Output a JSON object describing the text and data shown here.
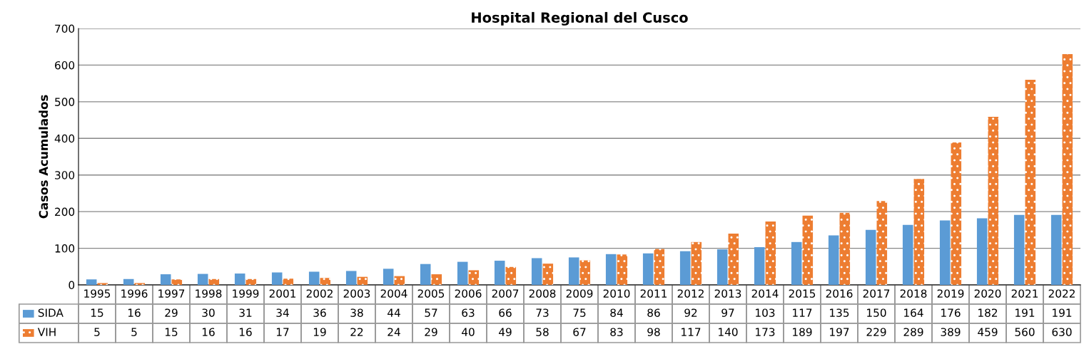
{
  "chart_data": {
    "type": "bar",
    "title": "Hospital Regional del Cusco",
    "ylabel": "Casos Acumulados",
    "categories": [
      "1995",
      "1996",
      "1997",
      "1998",
      "1999",
      "2001",
      "2002",
      "2003",
      "2004",
      "2005",
      "2006",
      "2007",
      "2008",
      "2009",
      "2010",
      "2011",
      "2012",
      "2013",
      "2014",
      "2015",
      "2016",
      "2017",
      "2018",
      "2019",
      "2020",
      "2021",
      "2022"
    ],
    "series": [
      {
        "name": "SIDA",
        "color": "#5b9bd5",
        "values": [
          15,
          16,
          29,
          30,
          31,
          34,
          36,
          38,
          44,
          57,
          63,
          66,
          73,
          75,
          84,
          86,
          92,
          97,
          103,
          117,
          135,
          150,
          164,
          176,
          182,
          191,
          191
        ]
      },
      {
        "name": "VIH",
        "color": "#ed7d31",
        "values": [
          5,
          5,
          15,
          16,
          16,
          17,
          19,
          22,
          24,
          29,
          40,
          49,
          58,
          67,
          83,
          98,
          117,
          140,
          173,
          189,
          197,
          229,
          289,
          389,
          459,
          560,
          630
        ]
      }
    ],
    "ylim": [
      0,
      700
    ],
    "yticks": [
      0,
      100,
      200,
      300,
      400,
      500,
      600,
      700
    ],
    "grid": "y",
    "data_labels": true,
    "legend": "bottom"
  }
}
